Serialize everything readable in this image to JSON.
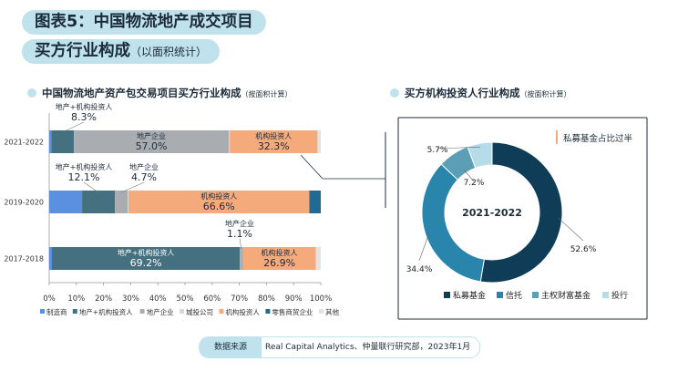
{
  "title": {
    "line1": "图表5：中国物流地产成交项目",
    "line2": "买方行业构成",
    "line2_sub": "（以面积统计）"
  },
  "left_header": {
    "title": "中国物流地产资产包交易项目买方行业构成",
    "note": "（按面积计算）"
  },
  "right_header": {
    "title": "买方机构投资人行业构成",
    "note": "（按面积计算）"
  },
  "source": {
    "label": "数据来源",
    "text": "Real Capital Analytics、仲量联行研究部，2023年1月"
  },
  "colors": {
    "manufacturer": "#5b8fe0",
    "developer_institution": "#45707f",
    "developer": "#a9adb1",
    "city_investment": "#d8d8d8",
    "institutional": "#f5aa7c",
    "retail": "#1f6b93",
    "other": "#e2e2e2",
    "private_equity": "#0f3d57",
    "trust": "#2a85ad",
    "sovereign": "#5b9eb5",
    "investment_bank": "#b5dce8",
    "callout_bar": "#f5aa7c",
    "frame": "#1c2b3a"
  },
  "chart_data": [
    {
      "type": "bar",
      "orientation": "horizontal",
      "stacked": true,
      "categories": [
        "2021-2022",
        "2019-2020",
        "2017-2018"
      ],
      "series": [
        {
          "name": "制造商",
          "key": "manufacturer",
          "values": [
            0.8,
            12.1,
            1.0
          ]
        },
        {
          "name": "地产+机构投资人",
          "key": "developer_institution",
          "values": [
            8.3,
            12.1,
            69.2
          ]
        },
        {
          "name": "地产企业",
          "key": "developer",
          "values": [
            57.0,
            4.7,
            1.1
          ]
        },
        {
          "name": "城投公司",
          "key": "city_investment",
          "values": [
            0.4,
            0.3,
            0.0
          ]
        },
        {
          "name": "机构投资人",
          "key": "institutional",
          "values": [
            32.3,
            66.6,
            26.9
          ]
        },
        {
          "name": "零售商贸企业",
          "key": "retail",
          "values": [
            0.0,
            4.2,
            0.0
          ]
        },
        {
          "name": "其他",
          "key": "other",
          "values": [
            1.2,
            0.0,
            1.8
          ]
        }
      ],
      "data_labels": [
        {
          "row": 0,
          "series": 1,
          "name": "地产+机构投资人",
          "value": "8.3%",
          "placement": "above"
        },
        {
          "row": 0,
          "series": 2,
          "name": "地产企业",
          "value": "57.0%",
          "placement": "inside"
        },
        {
          "row": 0,
          "series": 4,
          "name": "机构投资人",
          "value": "32.3%",
          "placement": "inside"
        },
        {
          "row": 1,
          "series": 1,
          "name": "地产+机构投资人",
          "value": "12.1%",
          "placement": "above"
        },
        {
          "row": 1,
          "series": 2,
          "name": "地产企业",
          "value": "4.7%",
          "placement": "above"
        },
        {
          "row": 1,
          "series": 4,
          "name": "机构投资人",
          "value": "66.6%",
          "placement": "inside"
        },
        {
          "row": 2,
          "series": 1,
          "name": "地产+机构投资人",
          "value": "69.2%",
          "placement": "inside"
        },
        {
          "row": 2,
          "series": 2,
          "name": "地产企业",
          "value": "1.1%",
          "placement": "above"
        },
        {
          "row": 2,
          "series": 4,
          "name": "机构投资人",
          "value": "26.9%",
          "placement": "inside"
        }
      ],
      "xlim": [
        0,
        100
      ],
      "xticks": [
        "0%",
        "10%",
        "20%",
        "30%",
        "40%",
        "50%",
        "60%",
        "70%",
        "80%",
        "90%",
        "100%"
      ],
      "legend": "bottom"
    },
    {
      "type": "pie",
      "donut": true,
      "center_label": "2021-2022",
      "slices": [
        {
          "name": "私募基金",
          "key": "private_equity",
          "value": 52.6,
          "label": "52.6%"
        },
        {
          "name": "信托",
          "key": "trust",
          "value": 34.4,
          "label": "34.4%"
        },
        {
          "name": "主权财富基金",
          "key": "sovereign",
          "value": 7.2,
          "label": "7.2%"
        },
        {
          "name": "投行",
          "key": "investment_bank",
          "value": 5.7,
          "label": "5.7%"
        }
      ],
      "callout": "私募基金占比过半",
      "legend": "bottom"
    }
  ]
}
